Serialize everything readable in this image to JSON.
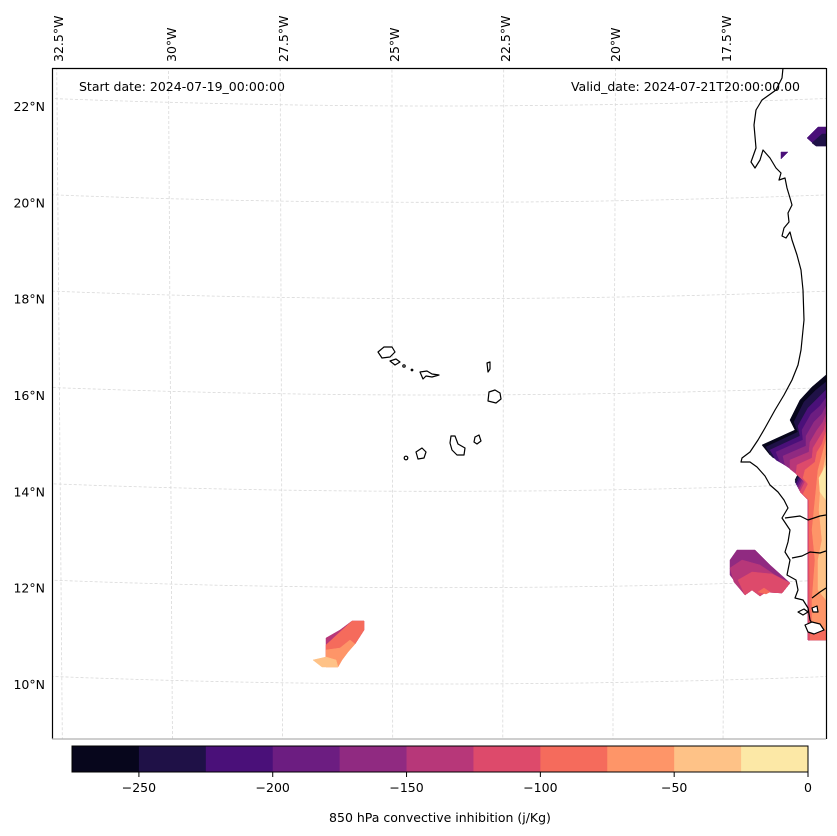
{
  "figure": {
    "annotations": {
      "start_date": "Start date: 2024-07-19_00:00:00",
      "valid_date": "Valid_date: 2024-07-21T20:00:00.00"
    }
  },
  "chart_data": {
    "type": "heatmap",
    "subtype": "filled-contour map",
    "variable": "850 hPa convective inhibition",
    "units": "j/Kg",
    "colorbar": {
      "label": "850 hPa convective inhibition (j/Kg)",
      "levels": [
        -275,
        -250,
        -225,
        -200,
        -175,
        -150,
        -125,
        -100,
        -75,
        -50,
        -25,
        0
      ],
      "colors": [
        "#07061c",
        "#1f1147",
        "#4a1079",
        "#6c1d81",
        "#902a81",
        "#b73779",
        "#dd4a6b",
        "#f56b5c",
        "#fe9568",
        "#fec287",
        "#fce8a6"
      ],
      "tick_values": [
        -250,
        -200,
        -150,
        -100,
        -50,
        0
      ],
      "tick_labels": [
        "−250",
        "−200",
        "−150",
        "−100",
        "−50",
        "0"
      ],
      "orientation": "horizontal",
      "placement": "bottom"
    },
    "map": {
      "lon_range": [
        -33,
        -15
      ],
      "lat_range": [
        9,
        22.8
      ],
      "gridlines": true,
      "lon_ticks": [
        -32.5,
        -30,
        -27.5,
        -25,
        -22.5,
        -20,
        -17.5
      ],
      "lon_tick_labels": [
        "32.5°W",
        "30°W",
        "27.5°W",
        "25°W",
        "22.5°W",
        "20°W",
        "17.5°W"
      ],
      "lat_ticks": [
        10,
        12,
        14,
        16,
        18,
        20,
        22
      ],
      "lat_tick_labels": [
        "10°N",
        "12°N",
        "14°N",
        "16°N",
        "18°N",
        "20°N",
        "22°N"
      ],
      "features": [
        "West African coastline",
        "Cape Verde islands",
        "country borders"
      ]
    },
    "regions": [
      {
        "name": "Senegal-Mauritania coast",
        "approx_lon": [
          -17.5,
          -15
        ],
        "approx_lat": [
          11,
          16.5
        ],
        "value_range": [
          -275,
          -25
        ],
        "note": "strongest inhibition (darkest) at northern edge near 15-16N, weakening to -50..-25 inland"
      },
      {
        "name": "offshore Guinea-Bissau patch",
        "approx_lon": [
          -18,
          -16.8
        ],
        "approx_lat": [
          11.8,
          12.8
        ],
        "value_range": [
          -175,
          -100
        ]
      },
      {
        "name": "southwest ocean patch",
        "approx_lon": [
          -26.5,
          -25.5
        ],
        "approx_lat": [
          10.3,
          11.3
        ],
        "value_range": [
          -150,
          -25
        ]
      },
      {
        "name": "northern coast patch",
        "approx_lon": [
          -15.5,
          -15
        ],
        "approx_lat": [
          21.2,
          21.6
        ],
        "value_range": [
          -250,
          -200
        ]
      },
      {
        "name": "small northern fleck",
        "approx_lon": [
          -16.1,
          -16
        ],
        "approx_lat": [
          20.9,
          21
        ],
        "value_range": [
          -225,
          -200
        ]
      }
    ]
  }
}
